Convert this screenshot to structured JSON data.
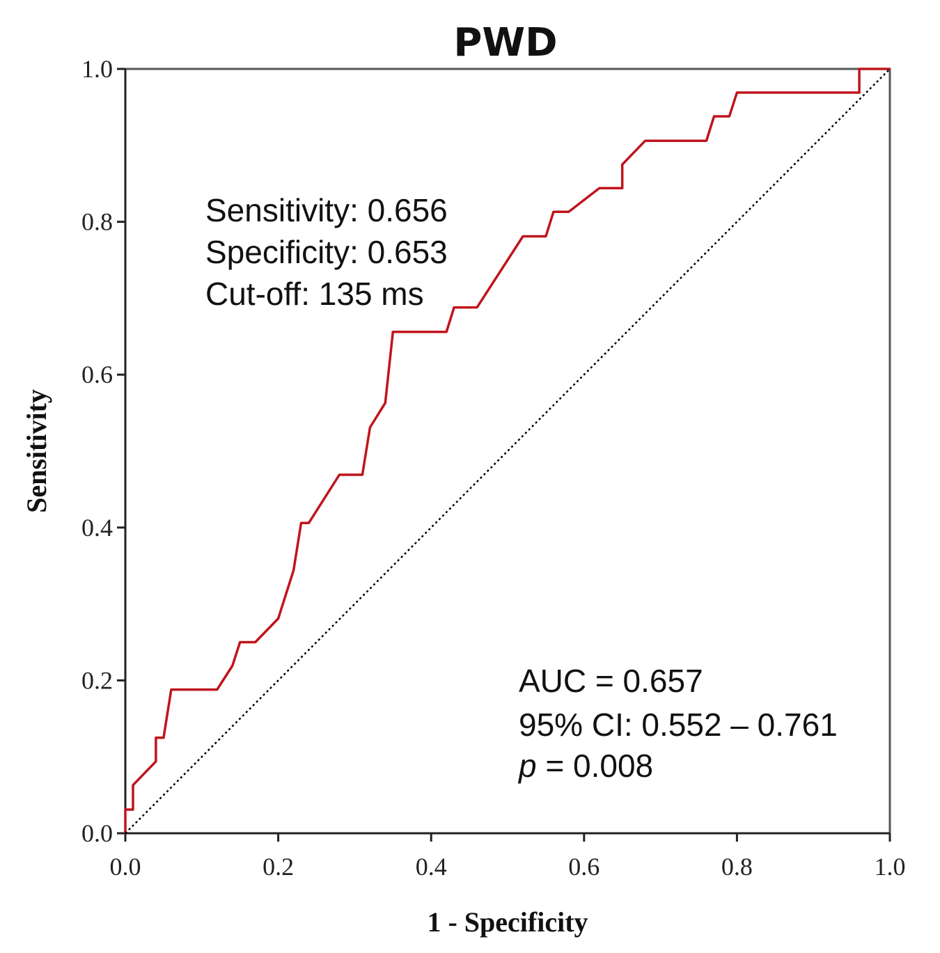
{
  "chart_data": {
    "type": "line",
    "title": "PWD",
    "xlabel": "1 - Specificity",
    "ylabel": "Sensitivity",
    "xlim": [
      0,
      1
    ],
    "ylim": [
      0,
      1
    ],
    "x_ticks": [
      "0.0",
      "0.2",
      "0.4",
      "0.6",
      "0.8",
      "1.0"
    ],
    "y_ticks": [
      "0.0",
      "0.2",
      "0.4",
      "0.6",
      "0.8",
      "1.0"
    ],
    "grid": false,
    "series": [
      {
        "color": "#c0141c",
        "x": [
          0.0,
          0.0,
          0.01,
          0.01,
          0.04,
          0.04,
          0.05,
          0.06,
          0.12,
          0.14,
          0.15,
          0.17,
          0.2,
          0.22,
          0.23,
          0.24,
          0.28,
          0.31,
          0.32,
          0.34,
          0.35,
          0.36,
          0.42,
          0.43,
          0.46,
          0.52,
          0.55,
          0.56,
          0.58,
          0.62,
          0.65,
          0.65,
          0.68,
          0.76,
          0.77,
          0.79,
          0.8,
          0.83,
          0.96,
          0.96,
          1.0
        ],
        "y": [
          0.0,
          0.031,
          0.031,
          0.063,
          0.094,
          0.125,
          0.125,
          0.188,
          0.188,
          0.219,
          0.25,
          0.25,
          0.281,
          0.344,
          0.406,
          0.406,
          0.469,
          0.469,
          0.531,
          0.563,
          0.656,
          0.656,
          0.656,
          0.688,
          0.688,
          0.781,
          0.781,
          0.813,
          0.813,
          0.844,
          0.844,
          0.875,
          0.906,
          0.906,
          0.938,
          0.938,
          0.969,
          0.969,
          0.969,
          1.0,
          1.0
        ]
      },
      {
        "color": "#000000",
        "dashed": true,
        "x": [
          0,
          1
        ],
        "y": [
          0,
          1
        ]
      }
    ],
    "annotations": [
      {
        "position": "upper-left",
        "lines": [
          "Sensitivity: 0.656",
          "Specificity: 0.653",
          "Cut-off: 135 ms"
        ]
      },
      {
        "position": "lower-right",
        "lines": [
          "AUC = 0.657",
          "95% CI: 0.552 – 0.761",
          "p = 0.008"
        ]
      }
    ]
  }
}
